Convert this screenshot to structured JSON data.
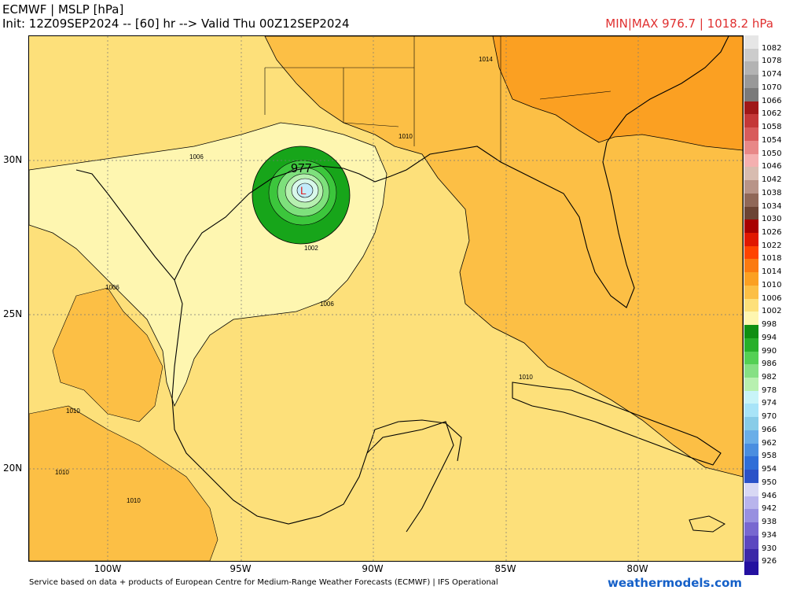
{
  "header": {
    "line1": "ECMWF | MSLP [hPa]",
    "line2": "Init: 12Z09SEP2024 -- [60] hr --> Valid Thu 00Z12SEP2024",
    "minmax": "MIN|MAX 976.7 | 1018.2 hPa"
  },
  "map": {
    "lat_labels": [
      "30N",
      "25N",
      "20N"
    ],
    "lon_labels": [
      "100W",
      "95W",
      "90W",
      "85W",
      "80W"
    ],
    "isobar_labels": [
      "1014",
      "1010",
      "1006",
      "1002",
      "1006",
      "1006",
      "1010",
      "1010",
      "1010",
      "1010"
    ],
    "center_value": "977",
    "low_symbol": "L",
    "colors": {
      "p1002": "#fef6b0",
      "p1006": "#fde07a",
      "p1010": "#fcbf45",
      "p1014": "#fba022",
      "p998": "#17a51a",
      "p994": "#3cc63c",
      "p990": "#7ee07c",
      "p986": "#b6f0b0",
      "p982": "#d8f8ea",
      "p978": "#c2ecfb",
      "grid": "#777777",
      "coast": "#000000",
      "low": "#e02020"
    }
  },
  "colorbar": {
    "labels": [
      "1082",
      "1078",
      "1074",
      "1070",
      "1066",
      "1062",
      "1058",
      "1054",
      "1050",
      "1046",
      "1042",
      "1038",
      "1034",
      "1030",
      "1026",
      "1022",
      "1018",
      "1014",
      "1010",
      "1006",
      "1002",
      "998",
      "994",
      "990",
      "986",
      "982",
      "978",
      "974",
      "970",
      "966",
      "962",
      "958",
      "954",
      "950",
      "946",
      "942",
      "938",
      "934",
      "930",
      "926"
    ],
    "colors": [
      "#e6e6e6",
      "#cccccc",
      "#b3b3b3",
      "#999999",
      "#7a7a7a",
      "#a01818",
      "#c43838",
      "#d85c5c",
      "#e88888",
      "#f4b0b0",
      "#d8bcb0",
      "#b89488",
      "#906858",
      "#6c4434",
      "#a80000",
      "#e01800",
      "#ff4400",
      "#fb7a10",
      "#fba022",
      "#fcbf45",
      "#fde07a",
      "#fef6b0",
      "#0f8f12",
      "#28b02a",
      "#54d054",
      "#86e084",
      "#b8f0b0",
      "#c8f4f8",
      "#a8e4f8",
      "#88cce8",
      "#6aaee8",
      "#4a8ee0",
      "#2e6ed8",
      "#2a52c8",
      "#d8d8f4",
      "#b8b4ec",
      "#9890e0",
      "#7868d0",
      "#5c48c0",
      "#3c28a8",
      "#2410a0"
    ]
  },
  "footer": {
    "credit": "Service based on data + products of European Centre for Medium-Range Weather Forecasts (ECMWF) | IFS Operational",
    "brand": "weathermodels.com"
  }
}
